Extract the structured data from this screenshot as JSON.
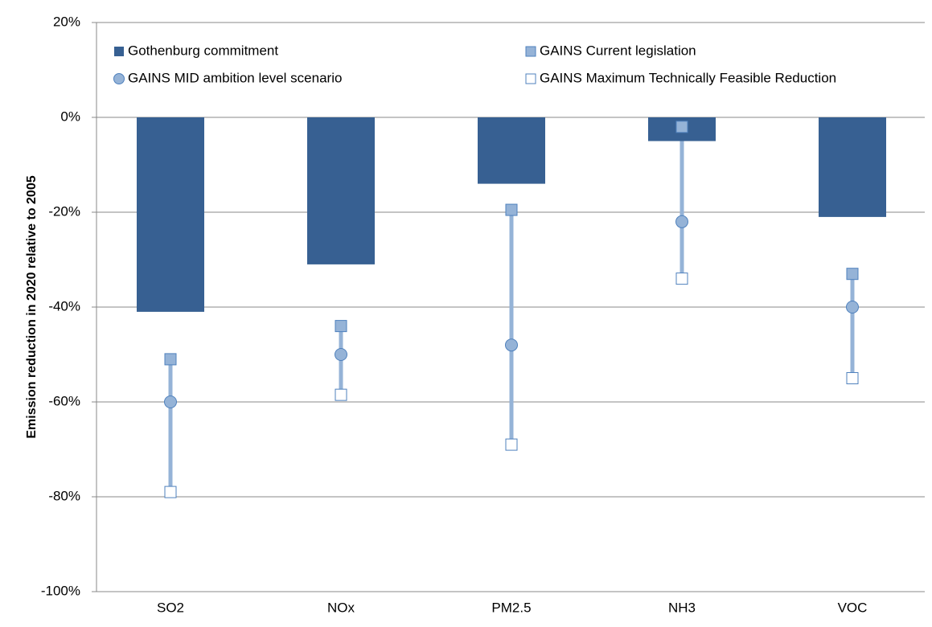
{
  "chart_data": {
    "type": "bar",
    "y_label": "Emission reduction in 2020 relative to 2005",
    "categories": [
      "SO2",
      "NOx",
      "PM2.5",
      "NH3",
      "VOC"
    ],
    "series": [
      {
        "name": "Gothenburg commitment",
        "type": "bar",
        "color": "#376092",
        "values": [
          -41,
          -31,
          -14,
          -5,
          -21
        ]
      },
      {
        "name": "GAINS Current legislation",
        "type": "marker",
        "marker": "square",
        "color": "#95b3d7",
        "values": [
          -51,
          -44,
          -19.5,
          -2,
          -33
        ]
      },
      {
        "name": "GAINS MID ambition level scenario",
        "type": "marker",
        "marker": "circle",
        "color": "#95b3d7",
        "values": [
          -60,
          -50,
          -48,
          -22,
          -40
        ]
      },
      {
        "name": "GAINS Maximum Technically Feasible Reduction",
        "type": "marker",
        "marker": "square",
        "color": "#ffffff",
        "values": [
          -79,
          -58.5,
          -69,
          -34,
          -55
        ]
      }
    ],
    "ylim": [
      -100,
      20
    ],
    "yticks": [
      {
        "value": -100,
        "label": "-100%"
      },
      {
        "value": -80,
        "label": "-80%"
      },
      {
        "value": -60,
        "label": "-60%"
      },
      {
        "value": -40,
        "label": "-40%"
      },
      {
        "value": -20,
        "label": "-20%"
      },
      {
        "value": 0,
        "label": "0%"
      },
      {
        "value": 20,
        "label": "20%"
      }
    ],
    "grid": true,
    "legend": "top"
  }
}
